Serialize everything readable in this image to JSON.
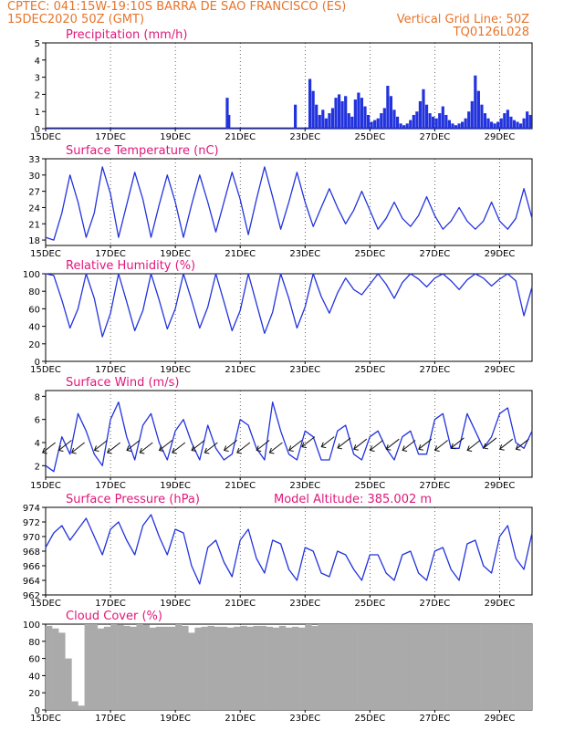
{
  "header": {
    "line1": "CPTEC:   041:15W-19:10S   BARRA DE SAO FRANCISCO (ES)",
    "line2": "15DEC2020 50Z (GMT)",
    "grid_note": "Vertical Grid Line: 50Z",
    "code": "TQ0126L028",
    "model_altitude": "Model Altitude: 385.002 m"
  },
  "colors": {
    "header": "#e8742a",
    "panel_title": "#e0187a",
    "series": "#2233dd",
    "cloud": "#aaaaaa",
    "wind_arrow": "#111111"
  },
  "chart_data": [
    {
      "type": "bar",
      "title": "Precipitation (mm/h)",
      "ylim": [
        0,
        5
      ],
      "yticks": [
        0,
        1,
        2,
        3,
        4,
        5
      ],
      "x_labels": [
        "15DEC",
        "17DEC",
        "19DEC",
        "21DEC",
        "23DEC",
        "25DEC",
        "27DEC",
        "29DEC"
      ],
      "x_domain_days": [
        15,
        30
      ],
      "x": [
        20.6,
        20.65,
        22.7,
        23.15,
        23.25,
        23.35,
        23.45,
        23.55,
        23.65,
        23.75,
        23.85,
        23.95,
        24.05,
        24.15,
        24.25,
        24.35,
        24.45,
        24.55,
        24.65,
        24.75,
        24.85,
        24.95,
        25.05,
        25.15,
        25.25,
        25.35,
        25.45,
        25.55,
        25.65,
        25.75,
        25.85,
        25.95,
        26.05,
        26.15,
        26.25,
        26.35,
        26.45,
        26.55,
        26.65,
        26.75,
        26.85,
        26.95,
        27.05,
        27.15,
        27.25,
        27.35,
        27.45,
        27.55,
        27.65,
        27.75,
        27.85,
        27.95,
        28.05,
        28.15,
        28.25,
        28.35,
        28.45,
        28.55,
        28.65,
        28.75,
        28.85,
        28.95,
        29.05,
        29.15,
        29.25,
        29.35,
        29.45,
        29.55,
        29.65,
        29.75,
        29.85,
        29.95
      ],
      "values": [
        1.8,
        0.8,
        1.4,
        2.9,
        2.2,
        1.4,
        0.8,
        1.1,
        0.6,
        0.9,
        1.2,
        1.8,
        2.0,
        1.6,
        1.9,
        0.9,
        0.7,
        1.7,
        2.1,
        1.8,
        1.3,
        0.8,
        0.4,
        0.5,
        0.6,
        0.9,
        1.2,
        2.5,
        1.9,
        1.1,
        0.7,
        0.3,
        0.2,
        0.3,
        0.5,
        0.8,
        1.0,
        1.6,
        2.3,
        1.4,
        0.9,
        0.7,
        0.6,
        0.9,
        1.3,
        0.8,
        0.5,
        0.3,
        0.2,
        0.3,
        0.4,
        0.6,
        1.0,
        1.6,
        3.1,
        2.2,
        1.4,
        0.9,
        0.6,
        0.4,
        0.3,
        0.4,
        0.6,
        0.9,
        1.1,
        0.7,
        0.5,
        0.4,
        0.3,
        0.6,
        1.0,
        0.8
      ]
    },
    {
      "type": "line",
      "title": "Surface Temperature (nC)",
      "ylim": [
        17,
        33
      ],
      "yticks": [
        18,
        21,
        24,
        27,
        30,
        33
      ],
      "x_labels": [
        "15DEC",
        "17DEC",
        "19DEC",
        "21DEC",
        "23DEC",
        "25DEC",
        "27DEC",
        "29DEC"
      ],
      "x": [
        15.0,
        15.25,
        15.5,
        15.75,
        16.0,
        16.25,
        16.5,
        16.75,
        17.0,
        17.25,
        17.5,
        17.75,
        18.0,
        18.25,
        18.5,
        18.75,
        19.0,
        19.25,
        19.5,
        19.75,
        20.0,
        20.25,
        20.5,
        20.75,
        21.0,
        21.25,
        21.5,
        21.75,
        22.0,
        22.25,
        22.5,
        22.75,
        23.0,
        23.25,
        23.5,
        23.75,
        24.0,
        24.25,
        24.5,
        24.75,
        25.0,
        25.25,
        25.5,
        25.75,
        26.0,
        26.25,
        26.5,
        26.75,
        27.0,
        27.25,
        27.5,
        27.75,
        28.0,
        28.25,
        28.5,
        28.75,
        29.0,
        29.25,
        29.5,
        29.75,
        30.0
      ],
      "y": [
        18.5,
        18.0,
        23.0,
        30.0,
        25.0,
        18.5,
        23.0,
        31.5,
        26.5,
        18.5,
        24.5,
        30.5,
        25.5,
        18.5,
        24.5,
        30.0,
        25.0,
        18.5,
        24.5,
        30.0,
        25.0,
        19.5,
        25.0,
        30.5,
        25.5,
        19.0,
        25.5,
        31.5,
        26.0,
        20.0,
        25.0,
        30.5,
        25.0,
        20.5,
        24.0,
        27.5,
        24.0,
        21.0,
        23.5,
        27.0,
        23.5,
        20.0,
        22.0,
        25.0,
        22.0,
        20.5,
        22.5,
        26.0,
        22.5,
        20.0,
        21.5,
        24.0,
        21.5,
        20.0,
        21.5,
        25.0,
        21.5,
        20.0,
        22.0,
        27.5,
        22.0
      ]
    },
    {
      "type": "line",
      "title": "Relative Humidity (%)",
      "ylim": [
        0,
        100
      ],
      "yticks": [
        0,
        20,
        40,
        60,
        80,
        100
      ],
      "x_labels": [
        "15DEC",
        "17DEC",
        "19DEC",
        "21DEC",
        "23DEC",
        "25DEC",
        "27DEC",
        "29DEC"
      ],
      "x": [
        15.0,
        15.25,
        15.5,
        15.75,
        16.0,
        16.25,
        16.5,
        16.75,
        17.0,
        17.25,
        17.5,
        17.75,
        18.0,
        18.25,
        18.5,
        18.75,
        19.0,
        19.25,
        19.5,
        19.75,
        20.0,
        20.25,
        20.5,
        20.75,
        21.0,
        21.25,
        21.5,
        21.75,
        22.0,
        22.25,
        22.5,
        22.75,
        23.0,
        23.25,
        23.5,
        23.75,
        24.0,
        24.25,
        24.5,
        24.75,
        25.0,
        25.25,
        25.5,
        25.75,
        26.0,
        26.25,
        26.5,
        26.75,
        27.0,
        27.25,
        27.5,
        27.75,
        28.0,
        28.25,
        28.5,
        28.75,
        29.0,
        29.25,
        29.5,
        29.75,
        30.0
      ],
      "y": [
        100,
        98,
        70,
        38,
        60,
        100,
        72,
        28,
        55,
        100,
        68,
        35,
        58,
        100,
        70,
        37,
        60,
        100,
        70,
        38,
        62,
        100,
        68,
        35,
        58,
        100,
        66,
        32,
        56,
        100,
        72,
        38,
        62,
        100,
        74,
        55,
        78,
        95,
        82,
        76,
        88,
        100,
        88,
        72,
        90,
        100,
        94,
        85,
        95,
        100,
        92,
        82,
        93,
        100,
        95,
        86,
        94,
        100,
        92,
        52,
        85
      ]
    },
    {
      "type": "line",
      "title": "Surface Wind (m/s)",
      "ylim": [
        1,
        8.5
      ],
      "yticks": [
        2,
        4,
        6,
        8
      ],
      "x_labels": [
        "15DEC",
        "17DEC",
        "19DEC",
        "21DEC",
        "23DEC",
        "25DEC",
        "27DEC",
        "29DEC"
      ],
      "x": [
        15.0,
        15.25,
        15.5,
        15.75,
        16.0,
        16.25,
        16.5,
        16.75,
        17.0,
        17.25,
        17.5,
        17.75,
        18.0,
        18.25,
        18.5,
        18.75,
        19.0,
        19.25,
        19.5,
        19.75,
        20.0,
        20.25,
        20.5,
        20.75,
        21.0,
        21.25,
        21.5,
        21.75,
        22.0,
        22.25,
        22.5,
        22.75,
        23.0,
        23.25,
        23.5,
        23.75,
        24.0,
        24.25,
        24.5,
        24.75,
        25.0,
        25.25,
        25.5,
        25.75,
        26.0,
        26.25,
        26.5,
        26.75,
        27.0,
        27.25,
        27.5,
        27.75,
        28.0,
        28.25,
        28.5,
        28.75,
        29.0,
        29.25,
        29.5,
        29.75,
        30.0
      ],
      "y": [
        2.0,
        1.5,
        4.5,
        3.0,
        6.5,
        5.0,
        3.0,
        2.0,
        6.0,
        7.5,
        4.5,
        2.5,
        5.5,
        6.5,
        4.0,
        2.5,
        5.0,
        6.0,
        4.0,
        2.5,
        5.5,
        3.5,
        2.5,
        3.0,
        6.0,
        5.5,
        3.5,
        2.5,
        7.5,
        5.0,
        3.0,
        2.5,
        5.0,
        4.5,
        2.5,
        2.5,
        5.0,
        5.5,
        3.0,
        2.5,
        4.5,
        5.0,
        3.5,
        2.5,
        4.5,
        5.0,
        3.0,
        3.0,
        6.0,
        6.5,
        3.5,
        3.5,
        6.5,
        5.0,
        3.5,
        4.5,
        6.5,
        7.0,
        4.0,
        3.5,
        5.0
      ],
      "wind_arrow_x": [
        15.3,
        15.8,
        16.2,
        16.9,
        17.3,
        17.9,
        18.3,
        18.9,
        19.3,
        19.9,
        20.3,
        20.9,
        21.3,
        21.9,
        22.3,
        22.9,
        23.3,
        23.9,
        24.4,
        24.9,
        25.4,
        25.9,
        26.4,
        26.9,
        27.4,
        27.9,
        28.4,
        28.9,
        29.4,
        29.9
      ],
      "wind_arrow_y": [
        4.0,
        4.2,
        4.0,
        4.2,
        4.0,
        4.2,
        4.0,
        4.2,
        4.0,
        4.2,
        4.0,
        4.2,
        4.0,
        4.2,
        4.0,
        4.2,
        4.5,
        4.5,
        4.4,
        4.3,
        4.2,
        4.3,
        4.2,
        4.3,
        4.2,
        4.4,
        4.2,
        4.4,
        4.3,
        4.3
      ]
    },
    {
      "type": "line",
      "title": "Surface Pressure (hPa)",
      "ylim": [
        962,
        974
      ],
      "yticks": [
        962,
        964,
        966,
        968,
        970,
        972,
        974
      ],
      "x_labels": [
        "15DEC",
        "17DEC",
        "19DEC",
        "21DEC",
        "23DEC",
        "25DEC",
        "27DEC",
        "29DEC"
      ],
      "x": [
        15.0,
        15.25,
        15.5,
        15.75,
        16.0,
        16.25,
        16.5,
        16.75,
        17.0,
        17.25,
        17.5,
        17.75,
        18.0,
        18.25,
        18.5,
        18.75,
        19.0,
        19.25,
        19.5,
        19.75,
        20.0,
        20.25,
        20.5,
        20.75,
        21.0,
        21.25,
        21.5,
        21.75,
        22.0,
        22.25,
        22.5,
        22.75,
        23.0,
        23.25,
        23.5,
        23.75,
        24.0,
        24.25,
        24.5,
        24.75,
        25.0,
        25.25,
        25.5,
        25.75,
        26.0,
        26.25,
        26.5,
        26.75,
        27.0,
        27.25,
        27.5,
        27.75,
        28.0,
        28.25,
        28.5,
        28.75,
        29.0,
        29.25,
        29.5,
        29.75,
        30.0
      ],
      "y": [
        968.5,
        970.5,
        971.5,
        969.5,
        971.0,
        972.5,
        970.0,
        967.5,
        971.0,
        972.0,
        969.5,
        967.5,
        971.5,
        973.0,
        970.0,
        967.5,
        971.0,
        970.5,
        966.0,
        963.5,
        968.5,
        969.5,
        966.5,
        964.5,
        969.5,
        971.0,
        967.0,
        965.0,
        969.5,
        969.0,
        965.5,
        964.0,
        968.5,
        968.0,
        965.0,
        964.5,
        968.0,
        967.5,
        965.5,
        964.0,
        967.5,
        967.5,
        965.0,
        964.0,
        967.5,
        968.0,
        965.0,
        964.0,
        968.0,
        968.5,
        965.5,
        964.0,
        969.0,
        969.5,
        966.0,
        965.0,
        970.0,
        971.5,
        967.0,
        965.5,
        970.5
      ]
    },
    {
      "type": "bar",
      "title": "Cloud Cover (%)",
      "ylim": [
        0,
        100
      ],
      "yticks": [
        0,
        20,
        40,
        60,
        80,
        100
      ],
      "x_labels": [
        "15DEC",
        "17DEC",
        "19DEC",
        "21DEC",
        "23DEC",
        "25DEC",
        "27DEC",
        "29DEC"
      ],
      "x": [
        15.1,
        15.3,
        15.5,
        15.7,
        15.9,
        16.1,
        16.3,
        16.5,
        16.7,
        16.9,
        17.1,
        17.3,
        17.5,
        17.7,
        17.9,
        18.1,
        18.3,
        18.5,
        18.7,
        18.9,
        19.1,
        19.3,
        19.5,
        19.7,
        19.9,
        20.1,
        20.3,
        20.5,
        20.7,
        20.9,
        21.1,
        21.3,
        21.5,
        21.7,
        21.9,
        22.1,
        22.3,
        22.5,
        22.7,
        22.9,
        23.1,
        23.3,
        23.5,
        23.7,
        23.9,
        24.1,
        24.3,
        24.5,
        24.7,
        24.9,
        25.1,
        25.3,
        25.5,
        25.7,
        25.9,
        26.1,
        26.3,
        26.5,
        26.7,
        26.9,
        27.1,
        27.3,
        27.5,
        27.7,
        27.9,
        28.1,
        28.3,
        28.5,
        28.7,
        28.9,
        29.1,
        29.3,
        29.5,
        29.7,
        29.9
      ],
      "values": [
        98,
        95,
        90,
        60,
        10,
        5,
        100,
        100,
        95,
        97,
        100,
        99,
        98,
        97,
        100,
        99,
        96,
        97,
        97,
        97,
        100,
        98,
        90,
        96,
        97,
        98,
        97,
        97,
        96,
        97,
        98,
        97,
        98,
        98,
        97,
        96,
        98,
        96,
        97,
        96,
        100,
        98,
        100,
        100,
        100,
        100,
        100,
        100,
        100,
        100,
        100,
        100,
        100,
        100,
        100,
        100,
        100,
        100,
        100,
        100,
        100,
        100,
        100,
        100,
        100,
        100,
        100,
        100,
        100,
        100,
        100,
        100,
        100,
        100,
        100
      ]
    }
  ]
}
